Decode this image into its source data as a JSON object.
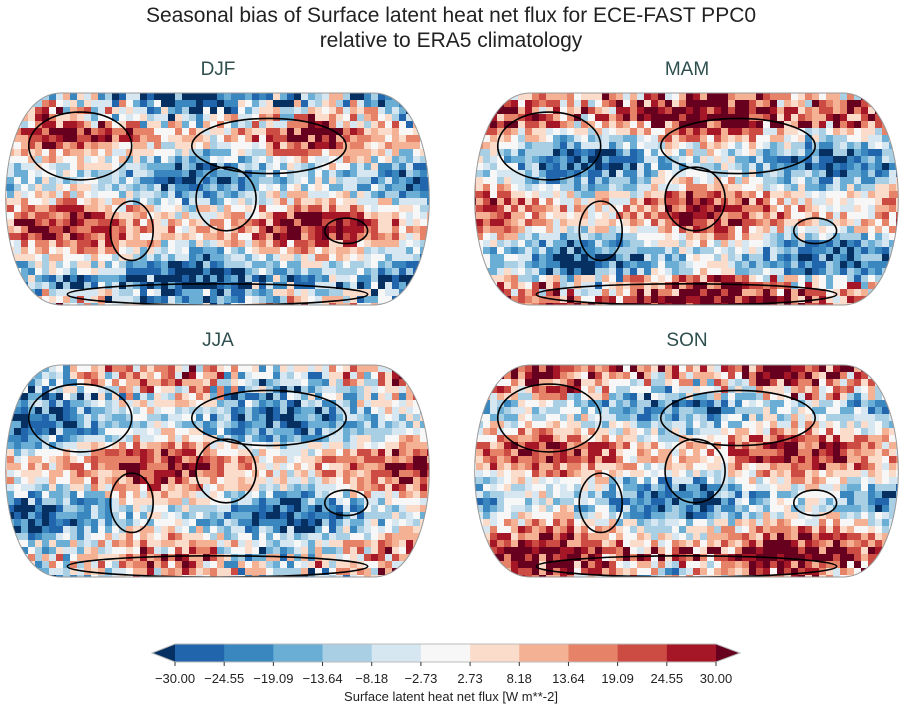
{
  "title_line1": "Seasonal bias of Surface latent heat net flux for ECE-FAST PPC0",
  "title_line2": "relative to ERA5 climatology",
  "panels": [
    {
      "label": "DJF"
    },
    {
      "label": "MAM"
    },
    {
      "label": "JJA"
    },
    {
      "label": "SON"
    }
  ],
  "colorbar": {
    "label": "Surface latent heat net flux [W m**-2]",
    "ticks": [
      "−30.00",
      "−24.55",
      "−19.09",
      "−13.64",
      "−8.18",
      "−2.73",
      "2.73",
      "8.18",
      "13.64",
      "19.09",
      "24.55",
      "30.00"
    ],
    "colors": [
      "#2166ac",
      "#3a87c0",
      "#6aaed6",
      "#a9cfe5",
      "#d6e7f1",
      "#f7f7f7",
      "#fbdccb",
      "#f5b194",
      "#e58267",
      "#cc4c44",
      "#a51626"
    ],
    "under_color": "#053061",
    "over_color": "#67001f",
    "extend": "both",
    "range": [
      -30,
      30
    ]
  },
  "projection": "Robinson"
}
